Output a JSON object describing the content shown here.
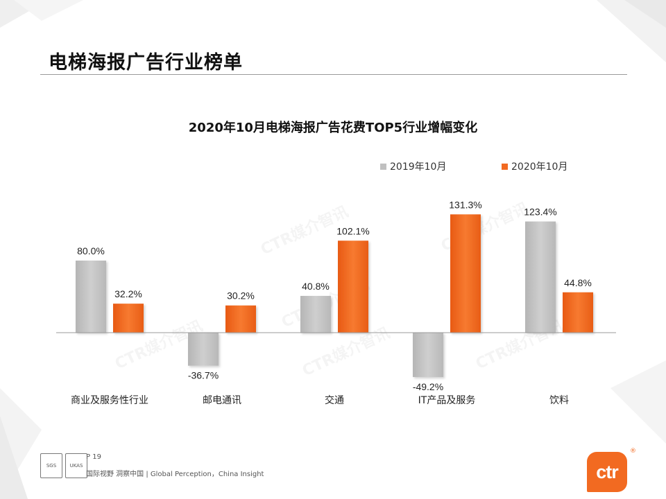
{
  "header": {
    "title": "电梯海报广告行业榜单"
  },
  "chart_data": {
    "type": "bar",
    "title": "2020年10月电梯海报广告花费TOP5行业增幅变化",
    "categories": [
      "商业及服务性行业",
      "邮电通讯",
      "交通",
      "IT产品及服务",
      "饮料"
    ],
    "series": [
      {
        "name": "2019年10月",
        "color": "#c0c0c0",
        "values": [
          80.0,
          -36.7,
          40.8,
          -49.2,
          123.4
        ],
        "labels": [
          "80.0%",
          "-36.7%",
          "40.8%",
          "-49.2%",
          "123.4%"
        ]
      },
      {
        "name": "2020年10月",
        "color": "#f26a21",
        "values": [
          32.2,
          30.2,
          102.1,
          131.3,
          44.8
        ],
        "labels": [
          "32.2%",
          "30.2%",
          "102.1%",
          "131.3%",
          "44.8%"
        ]
      }
    ],
    "xlabel": "",
    "ylabel": "",
    "ylim": [
      -60,
      140
    ],
    "grid": false,
    "legend": "top-right"
  },
  "watermark": {
    "text": "CTR媒介智讯"
  },
  "footer": {
    "page": "P 19",
    "slogan": "国际视野  洞察中国 |  Global Perception，China Insight",
    "badge_1": "SGS",
    "badge_2": "UKAS",
    "logo": "ctr",
    "logo_mark": "®"
  }
}
